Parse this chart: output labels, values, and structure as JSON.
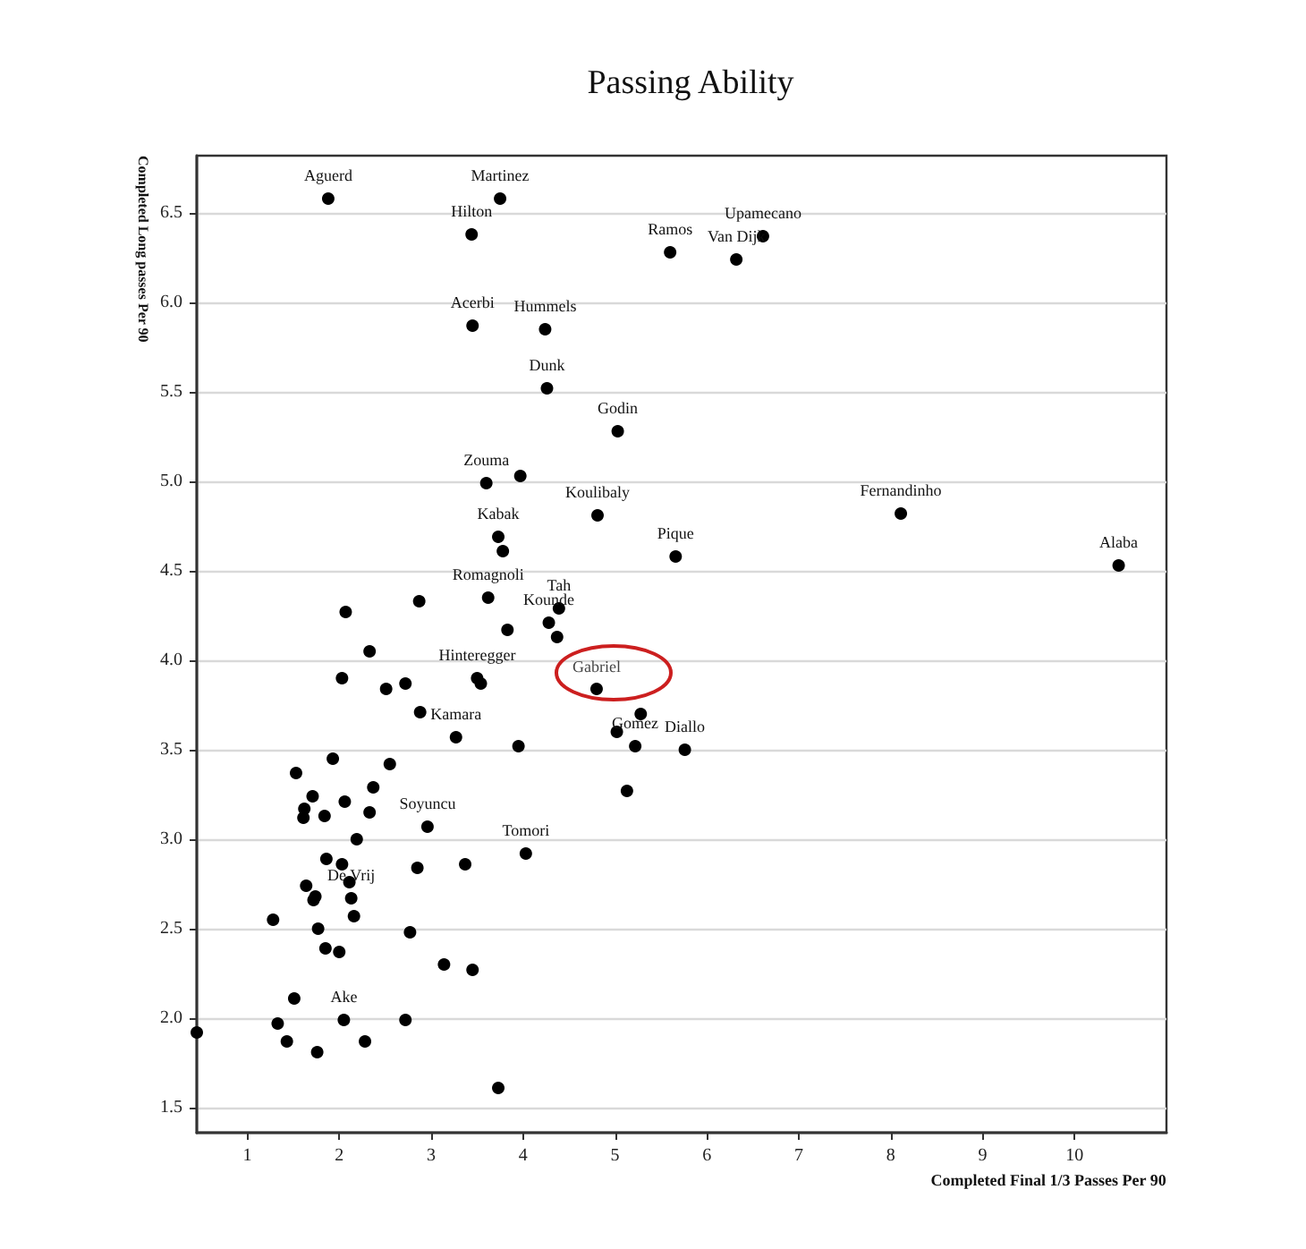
{
  "chart_data": {
    "type": "scatter",
    "title": "Passing Ability",
    "xlabel": "Completed Final 1/3 Passes Per 90",
    "ylabel": "Completed Long passes Per 90",
    "xlim": [
      0.45,
      11
    ],
    "xticks": [
      1,
      2,
      3,
      4,
      5,
      6,
      7,
      8,
      9,
      10
    ],
    "ylim": [
      1.36,
      6.82
    ],
    "yticks": [
      {
        "value": 1.5,
        "label": "1.5"
      },
      {
        "value": 2,
        "label": "2.0"
      },
      {
        "value": 2.5,
        "label": "2.5"
      },
      {
        "value": 3,
        "label": "3.0"
      },
      {
        "value": 3.5,
        "label": "3.5"
      },
      {
        "value": 4,
        "label": "4.0"
      },
      {
        "value": 4.5,
        "label": "4.5"
      },
      {
        "value": 5,
        "label": "5.0"
      },
      {
        "value": 5.5,
        "label": "5.5"
      },
      {
        "value": 6,
        "label": "6.0"
      },
      {
        "value": 6.5,
        "label": "6.5"
      }
    ],
    "grid": "y",
    "marker": "circle",
    "annotations": [
      {
        "text": "Gabriel",
        "x": 4.8,
        "y": 3.84
      }
    ],
    "series": [
      {
        "color": "#000000",
        "x": [
          1.88,
          3.75,
          3.44,
          5.6,
          6.32,
          6.61,
          3.45,
          4.24,
          4.26,
          5.03,
          3.6,
          3.97,
          4.81,
          3.73,
          3.78,
          5.66,
          8.11,
          10.48,
          3.62,
          2.07,
          2.87,
          4.39,
          4.28,
          3.83,
          4.37,
          2.33,
          2.03,
          3.5,
          3.54,
          2.51,
          2.72,
          4.8,
          2.88,
          5.28,
          5.22,
          5.02,
          3.27,
          3.95,
          5.76,
          1.93,
          1.53,
          2.55,
          2.37,
          5.13,
          1.71,
          2.06,
          1.62,
          1.84,
          2.33,
          1.61,
          2.96,
          2.19,
          4.03,
          1.86,
          2.03,
          2.85,
          3.37,
          2.11,
          1.64,
          1.74,
          1.72,
          2.13,
          2.16,
          1.28,
          1.77,
          2.77,
          1.85,
          2.0,
          3.14,
          3.45,
          1.51,
          1.33,
          2.05,
          2.72,
          0.45,
          1.43,
          2.28,
          1.76,
          3.73
        ],
        "values": [
          6.58,
          6.58,
          6.38,
          6.28,
          6.24,
          6.37,
          5.87,
          5.85,
          5.52,
          5.28,
          4.99,
          5.03,
          4.81,
          4.69,
          4.61,
          4.58,
          4.82,
          4.53,
          4.35,
          4.27,
          4.33,
          4.29,
          4.21,
          4.17,
          4.13,
          4.05,
          3.9,
          3.9,
          3.87,
          3.84,
          3.87,
          3.84,
          3.71,
          3.7,
          3.52,
          3.6,
          3.57,
          3.52,
          3.5,
          3.45,
          3.37,
          3.42,
          3.29,
          3.27,
          3.24,
          3.21,
          3.17,
          3.13,
          3.15,
          3.12,
          3.07,
          3.0,
          2.92,
          2.89,
          2.86,
          2.84,
          2.86,
          2.76,
          2.74,
          2.68,
          2.66,
          2.67,
          2.57,
          2.55,
          2.5,
          2.48,
          2.39,
          2.37,
          2.3,
          2.27,
          2.11,
          1.97,
          1.99,
          1.99,
          1.92,
          1.87,
          1.87,
          1.81,
          1.61
        ],
        "value_labels": [
          "Aguerd",
          "Martinez",
          "Hilton",
          "Ramos",
          "Van Dijk",
          "Upamecano",
          "Acerbi",
          "Hummels",
          "Dunk",
          "Godin",
          "Zouma",
          null,
          "Koulibaly",
          "Kabak",
          null,
          "Pique",
          "Fernandinho",
          "Alaba",
          "Romagnoli",
          null,
          null,
          "Tah",
          "Kounde",
          null,
          null,
          null,
          null,
          "Hinteregger",
          null,
          null,
          null,
          null,
          null,
          null,
          "Gomez",
          null,
          "Kamara",
          null,
          "Diallo",
          null,
          null,
          null,
          null,
          null,
          null,
          null,
          null,
          null,
          null,
          null,
          "Soyuncu",
          null,
          "Tomori",
          null,
          null,
          null,
          null,
          null,
          null,
          null,
          null,
          "De Vrij",
          null,
          null,
          null,
          null,
          null,
          null,
          null,
          null,
          null,
          null,
          "Ake",
          null,
          null,
          null,
          null,
          null,
          null
        ]
      }
    ]
  }
}
